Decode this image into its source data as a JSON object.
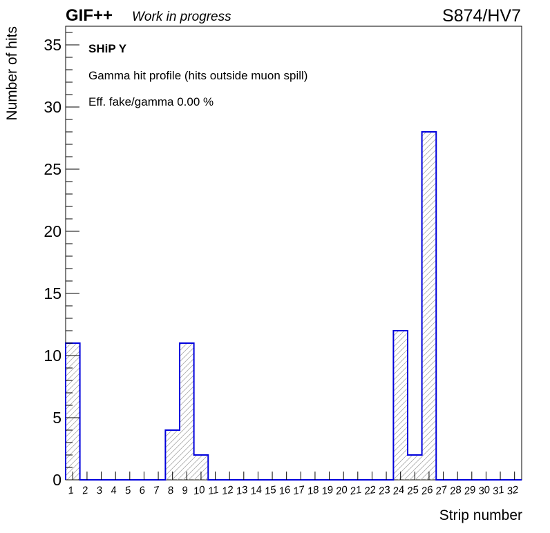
{
  "header": {
    "brand": "GIF++",
    "status": "Work in progress",
    "run_label": "S874/HV7"
  },
  "annotations": {
    "detector": "SHiP Y",
    "description": "Gamma hit profile (hits outside muon spill)",
    "efficiency": "Eff. fake/gamma 0.00 %"
  },
  "chart_data": {
    "type": "bar",
    "style": "histogram",
    "xlabel": "Strip number",
    "ylabel": "Number of hits",
    "categories": [
      "1",
      "2",
      "3",
      "4",
      "5",
      "6",
      "7",
      "8",
      "9",
      "10",
      "11",
      "12",
      "13",
      "14",
      "15",
      "16",
      "17",
      "18",
      "19",
      "20",
      "21",
      "22",
      "23",
      "24",
      "25",
      "26",
      "27",
      "28",
      "29",
      "30",
      "31",
      "32"
    ],
    "values": [
      11,
      0,
      0,
      0,
      0,
      0,
      0,
      4,
      11,
      2,
      0,
      0,
      0,
      0,
      0,
      0,
      0,
      0,
      0,
      0,
      0,
      0,
      0,
      12,
      2,
      28,
      0,
      0,
      0,
      0,
      0,
      0
    ],
    "ylim": [
      0,
      36.5
    ],
    "yticks": [
      0,
      5,
      10,
      15,
      20,
      25,
      30,
      35
    ],
    "grid": false,
    "bar_color": "#0000dd",
    "fill_pattern": "diagonal-hatch",
    "hatch_color": "#aaaaaa"
  }
}
